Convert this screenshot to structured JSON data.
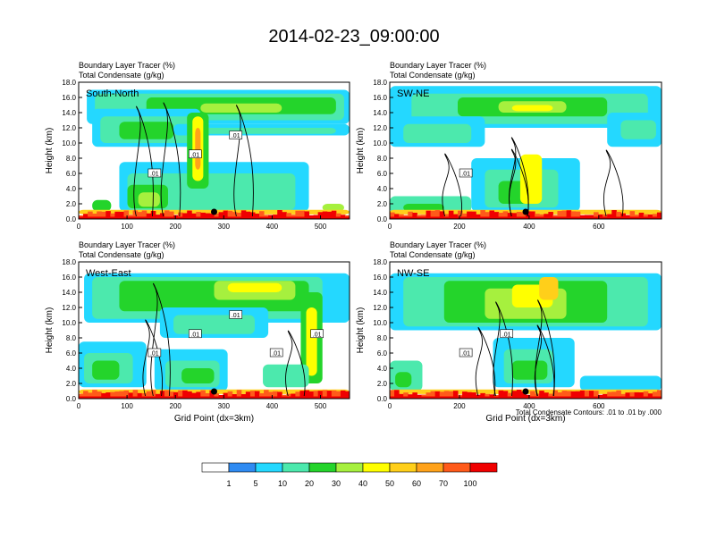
{
  "title": "2014-02-23_09:00:00",
  "colors": {
    "bins": [
      "#ffffff",
      "#2f8bf2",
      "#24d8ff",
      "#4ce9ad",
      "#24d42b",
      "#a6f03e",
      "#ffff00",
      "#ffcf1a",
      "#ffa21a",
      "#ff5a1a",
      "#f00000"
    ]
  },
  "chart_data": [
    {
      "type": "heatmap",
      "cross_section": "South-North",
      "subtitle_1": "Boundary Layer Tracer   (%)",
      "subtitle_2": "Total Condensate   (g/kg)",
      "ylabel": "Height (km)",
      "xlabel": "",
      "xlim": [
        0,
        560
      ],
      "ylim": [
        0,
        18
      ],
      "xticks": [
        0,
        100,
        200,
        300,
        400,
        500
      ],
      "yticks": [
        "0.0",
        "2.0",
        "4.0",
        "6.0",
        "8.0",
        "10.0",
        "12.0",
        "14.0",
        "16.0",
        "18.0"
      ],
      "contour_labels": [
        ".01",
        ".01",
        ".01"
      ],
      "marker_x": 280
    },
    {
      "type": "heatmap",
      "cross_section": "SW-NE",
      "subtitle_1": "Boundary Layer Tracer   (%)",
      "subtitle_2": "Total Condensate   (g/kg)",
      "ylabel": "Height (km)",
      "xlabel": "",
      "xlim": [
        0,
        780
      ],
      "ylim": [
        0,
        18
      ],
      "xticks": [
        0,
        200,
        400,
        600
      ],
      "yticks": [
        "0.0",
        "2.0",
        "4.0",
        "6.0",
        "8.0",
        "10.0",
        "12.0",
        "14.0",
        "16.0",
        "18.0"
      ],
      "contour_labels": [
        ".01"
      ],
      "marker_x": 390
    },
    {
      "type": "heatmap",
      "cross_section": "West-East",
      "subtitle_1": "Boundary Layer Tracer   (%)",
      "subtitle_2": "Total Condensate   (g/kg)",
      "ylabel": "Height (km)",
      "xlabel": "Grid Point (dx=3km)",
      "xlim": [
        0,
        560
      ],
      "ylim": [
        0,
        18
      ],
      "xticks": [
        0,
        100,
        200,
        300,
        400,
        500
      ],
      "yticks": [
        "0.0",
        "2.0",
        "4.0",
        "6.0",
        "8.0",
        "10.0",
        "12.0",
        "14.0",
        "16.0",
        "18.0"
      ],
      "contour_labels": [
        ".01",
        ".01",
        ".01",
        ".01",
        ".01"
      ],
      "marker_x": 280
    },
    {
      "type": "heatmap",
      "cross_section": "NW-SE",
      "subtitle_1": "Boundary Layer Tracer   (%)",
      "subtitle_2": "Total Condensate   (g/kg)",
      "ylabel": "Height (km)",
      "xlabel": "Grid Point (dx=3km)",
      "xlim": [
        0,
        780
      ],
      "ylim": [
        0,
        18
      ],
      "xticks": [
        0,
        200,
        400,
        600
      ],
      "yticks": [
        "0.0",
        "2.0",
        "4.0",
        "6.0",
        "8.0",
        "10.0",
        "12.0",
        "14.0",
        "16.0",
        "18.0"
      ],
      "contour_labels": [
        ".01",
        ".01"
      ],
      "marker_x": 390
    }
  ],
  "contour_note": "Total Condensate Contours: .01 to .01 by .000",
  "colorbar": {
    "labels": [
      "1",
      "5",
      "10",
      "20",
      "30",
      "40",
      "50",
      "60",
      "70",
      "100"
    ]
  }
}
